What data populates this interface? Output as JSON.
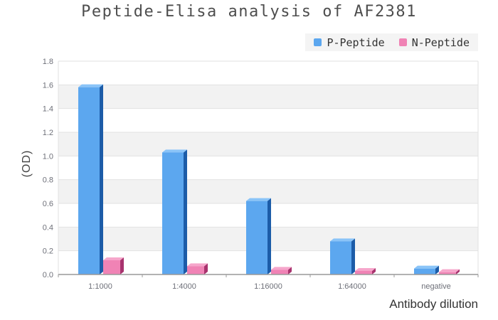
{
  "chart_data": {
    "type": "bar",
    "title": "Peptide-Elisa analysis of AF2381",
    "categories": [
      "1:1000",
      "1:4000",
      "1:16000",
      "1:64000",
      "negative"
    ],
    "series": [
      {
        "name": "P-Peptide",
        "values": [
          1.58,
          1.03,
          0.62,
          0.28,
          0.05
        ],
        "color": "#5ca7ef",
        "color_side": "#1c5ca8",
        "color_top": "#8ac4f8"
      },
      {
        "name": "N-Peptide",
        "values": [
          0.12,
          0.07,
          0.04,
          0.03,
          0.02
        ],
        "color": "#f083b5",
        "color_side": "#a8336e",
        "color_top": "#f6a6cb"
      }
    ],
    "xlabel": "Antibody dilution",
    "ylabel": "(OD)",
    "ylim": [
      0,
      1.8
    ],
    "ytick_step": 0.2,
    "grid": true,
    "legend_position": "top-right",
    "colors": {
      "band_alt": "#f2f2f2",
      "gridline": "#e2e2e2",
      "axis_line": "#999999",
      "tick_label": "#6e7079",
      "title_text": "#4e4e4e",
      "legend_bg": "#f4f4f4"
    }
  }
}
